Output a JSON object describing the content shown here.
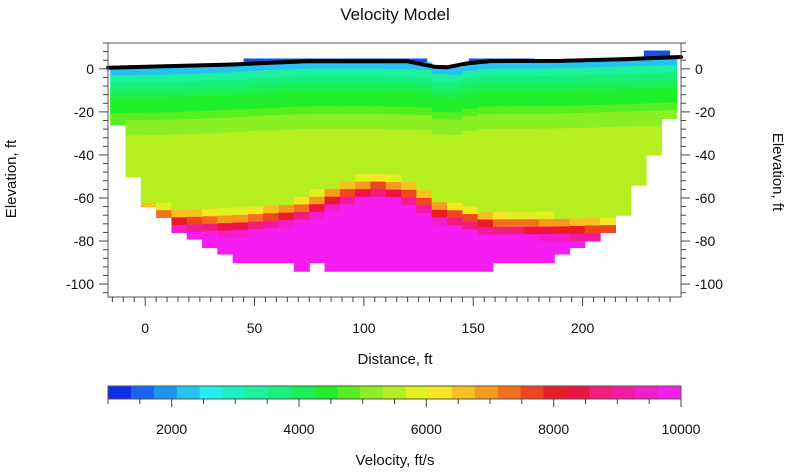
{
  "chart_data": {
    "type": "heatmap",
    "title": "Velocity Model",
    "xlabel": "Distance,  ft",
    "ylabel": "Elevation, ft",
    "ylabel_right": "Elevation, ft",
    "xlim": [
      -17,
      245
    ],
    "ylim": [
      -106,
      12
    ],
    "x_ticks": [
      0,
      50,
      100,
      150,
      200
    ],
    "y_ticks": [
      0,
      -20,
      -40,
      -60,
      -80,
      -100
    ],
    "colorbar": {
      "label": "Velocity, ft/s",
      "range": [
        1000,
        10000
      ],
      "ticks": [
        2000,
        4000,
        6000,
        8000,
        10000
      ],
      "colors": [
        "#0b31e8",
        "#1866f0",
        "#1f93f2",
        "#27c2f4",
        "#1ff0f0",
        "#1cf1c2",
        "#1df19e",
        "#17f07a",
        "#1af054",
        "#1eef2a",
        "#57ef1f",
        "#8af024",
        "#b6ef1f",
        "#e1f020",
        "#f6e624",
        "#f7c11f",
        "#f79b1f",
        "#f4701f",
        "#f0461e",
        "#ea1c24",
        "#f01246",
        "#f21c7a",
        "#f41aa0",
        "#f51ccb",
        "#f71df0"
      ]
    },
    "cell": {
      "dx": 7,
      "dy": 3.5
    },
    "columns": [
      {
        "x": -16,
        "bottom": -26,
        "surface": 0.5
      },
      {
        "x": -9,
        "bottom": -50,
        "surface": 0.6
      },
      {
        "x": -2,
        "bottom": -64,
        "surface": 0.7
      },
      {
        "x": 5,
        "bottom": -69,
        "surface": 0.8
      },
      {
        "x": 12,
        "bottom": -76,
        "surface": 1.0
      },
      {
        "x": 19,
        "bottom": -79,
        "surface": 1.2
      },
      {
        "x": 26,
        "bottom": -83,
        "surface": 1.5
      },
      {
        "x": 33,
        "bottom": -86,
        "surface": 1.8
      },
      {
        "x": 40,
        "bottom": -90,
        "surface": 2.1
      },
      {
        "x": 47,
        "bottom": -90,
        "surface": 2.5
      },
      {
        "x": 54,
        "bottom": -90,
        "surface": 2.9
      },
      {
        "x": 61,
        "bottom": -90,
        "surface": 3.2
      },
      {
        "x": 68,
        "bottom": -94,
        "surface": 3.5
      },
      {
        "x": 75,
        "bottom": -90,
        "surface": 3.6
      },
      {
        "x": 82,
        "bottom": -94,
        "surface": 3.6
      },
      {
        "x": 89,
        "bottom": -94,
        "surface": 3.6
      },
      {
        "x": 96,
        "bottom": -94,
        "surface": 3.6
      },
      {
        "x": 103,
        "bottom": -94,
        "surface": 3.6
      },
      {
        "x": 110,
        "bottom": -94,
        "surface": 3.4
      },
      {
        "x": 117,
        "bottom": -94,
        "surface": 3.3
      },
      {
        "x": 124,
        "bottom": -94,
        "surface": 3.0
      },
      {
        "x": 131,
        "bottom": -94,
        "surface": 1.0
      },
      {
        "x": 138,
        "bottom": -94,
        "surface": 0.8
      },
      {
        "x": 145,
        "bottom": -94,
        "surface": 2.5
      },
      {
        "x": 152,
        "bottom": -94,
        "surface": 3.5
      },
      {
        "x": 159,
        "bottom": -90,
        "surface": 3.6
      },
      {
        "x": 166,
        "bottom": -90,
        "surface": 3.6
      },
      {
        "x": 173,
        "bottom": -90,
        "surface": 3.6
      },
      {
        "x": 180,
        "bottom": -90,
        "surface": 3.7
      },
      {
        "x": 187,
        "bottom": -86,
        "surface": 3.8
      },
      {
        "x": 194,
        "bottom": -83,
        "surface": 4.0
      },
      {
        "x": 201,
        "bottom": -80,
        "surface": 4.2
      },
      {
        "x": 208,
        "bottom": -76,
        "surface": 4.4
      },
      {
        "x": 215,
        "bottom": -68,
        "surface": 4.6
      },
      {
        "x": 222,
        "bottom": -54,
        "surface": 4.8
      },
      {
        "x": 229,
        "bottom": -40,
        "surface": 5.0
      },
      {
        "x": 236,
        "bottom": -23,
        "surface": 5.2
      }
    ],
    "velocity_model": {
      "surface_velocity": 2200,
      "near_surface_velocity": 3300,
      "upper_gradient": 65,
      "base_velocity": 4800,
      "refractor_depth": [
        {
          "x": -16,
          "elev": -54
        },
        {
          "x": 10,
          "elev": -63
        },
        {
          "x": 40,
          "elev": -66
        },
        {
          "x": 70,
          "elev": -60
        },
        {
          "x": 90,
          "elev": -52
        },
        {
          "x": 105,
          "elev": -48
        },
        {
          "x": 120,
          "elev": -51
        },
        {
          "x": 135,
          "elev": -60
        },
        {
          "x": 160,
          "elev": -66
        },
        {
          "x": 200,
          "elev": -68
        },
        {
          "x": 240,
          "elev": -70
        }
      ],
      "transition_width": 12,
      "deep_velocity": 9800
    },
    "surface_line": [
      {
        "x": -17,
        "y": 0.5
      },
      {
        "x": 40,
        "y": 2.0
      },
      {
        "x": 75,
        "y": 3.6
      },
      {
        "x": 120,
        "y": 3.5
      },
      {
        "x": 132,
        "y": 1.0
      },
      {
        "x": 138,
        "y": 0.7
      },
      {
        "x": 147,
        "y": 2.5
      },
      {
        "x": 158,
        "y": 3.6
      },
      {
        "x": 190,
        "y": 3.7
      },
      {
        "x": 220,
        "y": 4.5
      },
      {
        "x": 245,
        "y": 5.5
      }
    ],
    "blue_top_blocks": [
      {
        "x": 45,
        "width": 84,
        "top": 4.8,
        "bottom": 3.0
      },
      {
        "x": 148,
        "width": 30,
        "top": 4.8,
        "bottom": 3.0
      },
      {
        "x": 228,
        "width": 12,
        "top": 8.5,
        "bottom": 4.5
      }
    ]
  }
}
